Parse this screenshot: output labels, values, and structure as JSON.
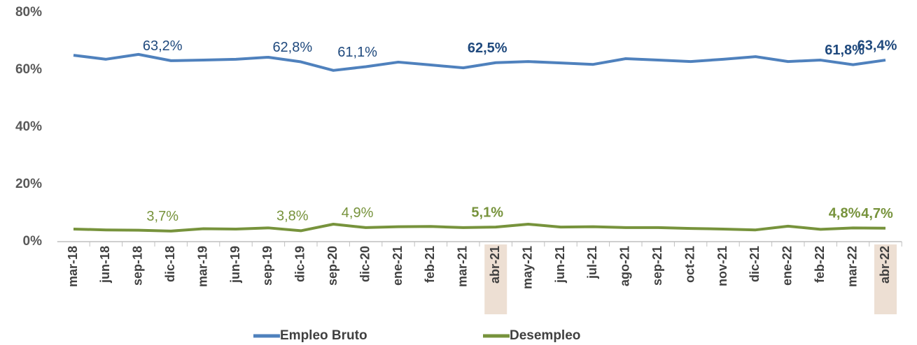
{
  "chart_data": {
    "type": "line",
    "categories": [
      "mar-18",
      "jun-18",
      "sep-18",
      "dic-18",
      "mar-19",
      "jun-19",
      "sep-19",
      "dic-19",
      "sep-20",
      "dic-20",
      "ene-21",
      "feb-21",
      "mar-21",
      "abr-21",
      "may-21",
      "jun-21",
      "jul-21",
      "ago-21",
      "sep-21",
      "oct-21",
      "nov-21",
      "dic-21",
      "ene-22",
      "feb-22",
      "mar-22",
      "abr-22"
    ],
    "series": [
      {
        "name": "Empleo Bruto",
        "color": "#4f81bd",
        "label_color": "#1f497d",
        "values": [
          65.1,
          63.7,
          65.4,
          63.2,
          63.4,
          63.7,
          64.4,
          62.8,
          59.8,
          61.1,
          62.7,
          61.7,
          60.7,
          62.5,
          62.9,
          62.4,
          61.9,
          63.9,
          63.4,
          62.9,
          63.7,
          64.6,
          62.9,
          63.4,
          61.8,
          63.4
        ],
        "value_labels": [
          null,
          null,
          null,
          "63,2%",
          null,
          null,
          null,
          "62,8%",
          null,
          "61,1%",
          null,
          null,
          null,
          "62,5%",
          null,
          null,
          null,
          null,
          null,
          null,
          null,
          null,
          null,
          null,
          "61,8%",
          "63,4%"
        ]
      },
      {
        "name": "Desempleo",
        "color": "#77933c",
        "label_color": "#77933c",
        "values": [
          4.4,
          4.1,
          4.0,
          3.7,
          4.5,
          4.4,
          4.8,
          3.8,
          6.1,
          4.9,
          5.2,
          5.3,
          4.9,
          5.1,
          6.1,
          5.1,
          5.2,
          4.9,
          4.9,
          4.6,
          4.4,
          4.1,
          5.4,
          4.3,
          4.8,
          4.7
        ],
        "value_labels": [
          null,
          null,
          null,
          "3,7%",
          null,
          null,
          null,
          "3,8%",
          null,
          "4,9%",
          null,
          null,
          null,
          "5,1%",
          null,
          null,
          null,
          null,
          null,
          null,
          null,
          null,
          null,
          null,
          "4,8%",
          "4,7%"
        ]
      }
    ],
    "ylim": [
      0,
      80
    ],
    "yticks": [
      {
        "value": 0,
        "label": "0%"
      },
      {
        "value": 20,
        "label": "20%"
      },
      {
        "value": 40,
        "label": "40%"
      },
      {
        "value": 60,
        "label": "60%"
      },
      {
        "value": 80,
        "label": "80%"
      }
    ],
    "highlight": [
      "abr-21",
      "abr-22"
    ],
    "bold_labels": [
      "abr-21",
      "mar-22",
      "abr-22"
    ],
    "legend": "bottom"
  }
}
